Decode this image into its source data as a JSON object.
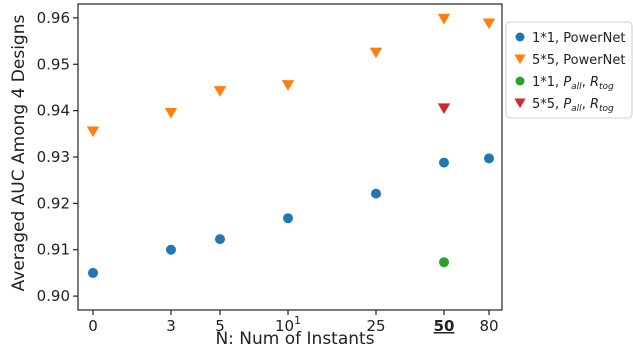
{
  "chart_data": {
    "type": "scatter",
    "title": "",
    "xlabel": "N: Num of Instants",
    "ylabel": "Averaged AUC Among 4 Designs",
    "ylim": [
      0.897,
      0.963
    ],
    "yticks": [
      0.9,
      0.91,
      0.92,
      0.93,
      0.94,
      0.95,
      0.96
    ],
    "ytick_labels": [
      "0.90",
      "0.91",
      "0.92",
      "0.93",
      "0.94",
      "0.95",
      "0.96"
    ],
    "x_ticks": [
      {
        "label": "0",
        "bold": false,
        "sup": ""
      },
      {
        "label": "3",
        "bold": false,
        "sup": ""
      },
      {
        "label": "5",
        "bold": false,
        "sup": ""
      },
      {
        "label": "10",
        "bold": false,
        "sup": "1"
      },
      {
        "label": "25",
        "bold": false,
        "sup": ""
      },
      {
        "label": "50",
        "bold": true,
        "sup": ""
      },
      {
        "label": "80",
        "bold": false,
        "sup": ""
      }
    ],
    "grid": false,
    "legend_position": "outside-right",
    "series": [
      {
        "name_main": "1*1, PowerNet",
        "name_sub": "",
        "marker": "circle",
        "color": "#1f77b4",
        "x": [
          0,
          3,
          5,
          10,
          25,
          50,
          80
        ],
        "y": [
          0.905,
          0.91,
          0.9123,
          0.9168,
          0.9221,
          0.9288,
          0.9297
        ]
      },
      {
        "name_main": "5*5, PowerNet",
        "name_sub": "",
        "marker": "triangle-down",
        "color": "#ff7f0e",
        "x": [
          0,
          3,
          5,
          10,
          25,
          50,
          80
        ],
        "y": [
          0.9355,
          0.9395,
          0.9442,
          0.9455,
          0.9525,
          0.9598,
          0.9588
        ]
      },
      {
        "name_main": "1*1, ",
        "name_p": "P",
        "name_p_sub": "all",
        "name_r": "R",
        "name_r_sub": "tog",
        "marker": "circle",
        "color": "#2ca02c",
        "x": [
          50
        ],
        "y": [
          0.9073
        ]
      },
      {
        "name_main": "5*5, ",
        "name_p": "P",
        "name_p_sub": "all",
        "name_r": "R",
        "name_r_sub": "tog",
        "marker": "triangle-down",
        "color": "#d62728",
        "x": [
          50
        ],
        "y": [
          0.9405
        ]
      }
    ]
  }
}
